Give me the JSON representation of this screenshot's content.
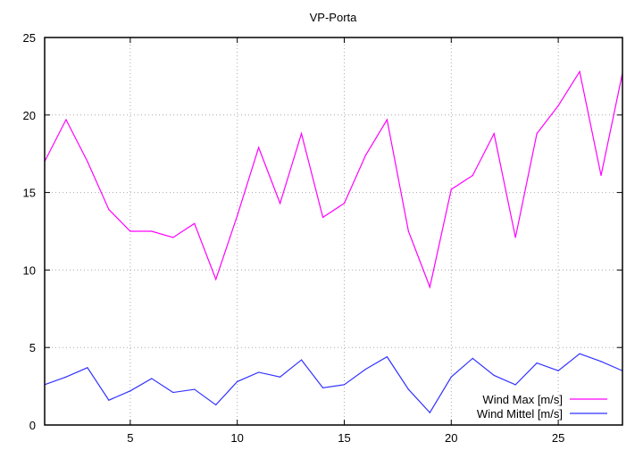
{
  "chart_data": {
    "type": "line",
    "title": "VP-Porta",
    "xlabel": "",
    "ylabel": "",
    "xlim": [
      1,
      28
    ],
    "ylim": [
      0,
      25
    ],
    "xticks": [
      5,
      10,
      15,
      20,
      25
    ],
    "yticks": [
      0,
      5,
      10,
      15,
      20,
      25
    ],
    "grid": true,
    "legend_position": "bottom-right",
    "x": [
      1,
      2,
      3,
      4,
      5,
      6,
      7,
      8,
      9,
      10,
      11,
      12,
      13,
      14,
      15,
      16,
      17,
      18,
      19,
      20,
      21,
      22,
      23,
      24,
      25,
      26,
      27,
      28
    ],
    "series": [
      {
        "name": "Wind Max [m/s]",
        "color": "#ff00ff",
        "values": [
          17.0,
          19.7,
          17.0,
          13.9,
          12.5,
          12.5,
          12.1,
          13.0,
          9.4,
          13.5,
          17.9,
          14.3,
          18.8,
          13.4,
          14.3,
          17.4,
          19.7,
          12.5,
          8.9,
          15.2,
          16.1,
          18.8,
          12.1,
          18.8,
          20.6,
          22.8,
          16.1,
          22.7
        ]
      },
      {
        "name": "Wind Mittel [m/s]",
        "color": "#3333ff",
        "values": [
          2.6,
          3.1,
          3.7,
          1.6,
          2.2,
          3.0,
          2.1,
          2.3,
          1.3,
          2.8,
          3.4,
          3.1,
          4.2,
          2.4,
          2.6,
          3.6,
          4.4,
          2.3,
          0.8,
          3.1,
          4.3,
          3.2,
          2.6,
          4.0,
          3.5,
          4.6,
          4.1,
          3.5
        ]
      }
    ]
  }
}
